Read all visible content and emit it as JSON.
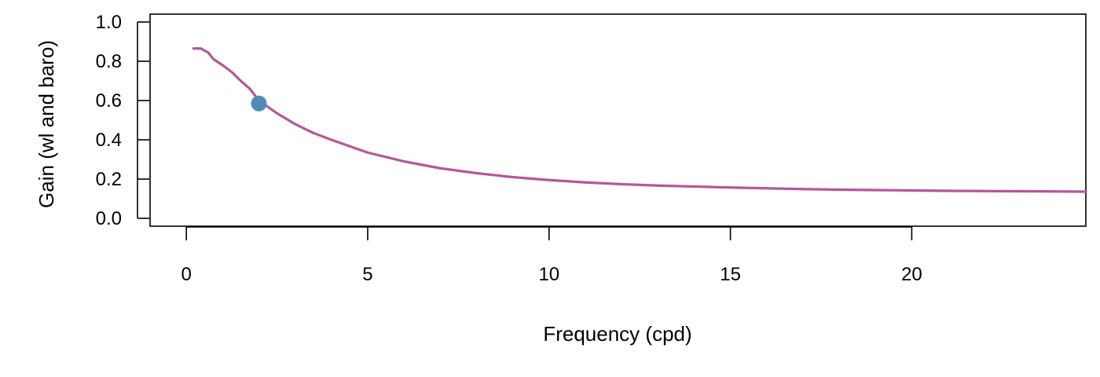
{
  "chart_data": {
    "type": "line",
    "title": "",
    "xlabel": "Frequency (cpd)",
    "ylabel": "Gain (wl and baro)",
    "xlim": [
      -1,
      24.8
    ],
    "ylim": [
      -0.04,
      1.04
    ],
    "xticks": [
      0,
      5,
      10,
      15,
      20
    ],
    "xtick_labels": [
      "0",
      "5",
      "10",
      "15",
      "20"
    ],
    "yticks": [
      0.0,
      0.2,
      0.4,
      0.6,
      0.8,
      1.0
    ],
    "ytick_labels": [
      "0.0",
      "0.2",
      "0.4",
      "0.6",
      "0.8",
      "1.0"
    ],
    "grid": false,
    "series": [
      {
        "color": "#b5579a",
        "x": [
          0.2,
          0.4,
          0.6,
          0.75,
          1.0,
          1.25,
          1.5,
          1.75,
          2.0,
          2.5,
          3.0,
          3.5,
          4.0,
          5.0,
          6.0,
          7.0,
          8.0,
          9.0,
          10.0,
          11.0,
          12.0,
          13.0,
          14.0,
          15.0,
          16.0,
          17.0,
          18.0,
          19.0,
          20.0,
          21.0,
          22.0,
          23.0,
          24.0,
          24.8
        ],
        "y": [
          0.865,
          0.865,
          0.845,
          0.81,
          0.78,
          0.745,
          0.7,
          0.66,
          0.6,
          0.535,
          0.48,
          0.435,
          0.4,
          0.335,
          0.29,
          0.255,
          0.23,
          0.21,
          0.195,
          0.183,
          0.174,
          0.167,
          0.162,
          0.157,
          0.153,
          0.149,
          0.146,
          0.144,
          0.142,
          0.14,
          0.139,
          0.138,
          0.137,
          0.136
        ]
      }
    ],
    "highlight_point": {
      "x": 2.0,
      "y": 0.585,
      "color": "#4f8db8"
    }
  }
}
